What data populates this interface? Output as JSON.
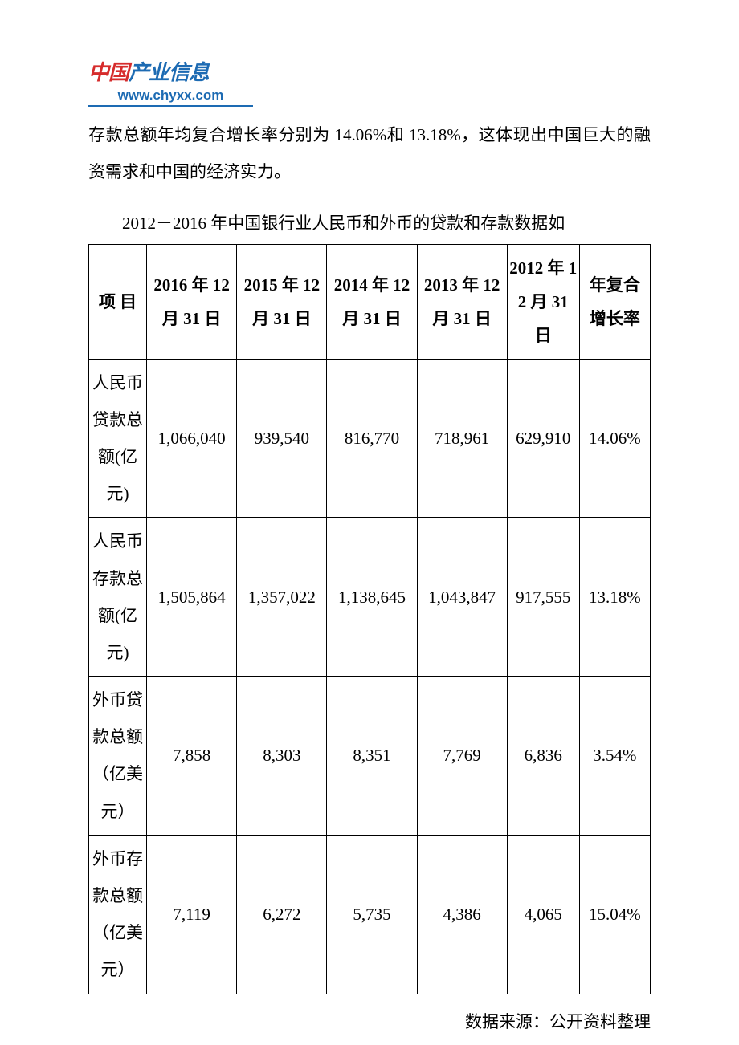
{
  "logo": {
    "text_red": "中国",
    "text_blue": "产业信息",
    "url": "www.chyxx.com"
  },
  "intro": "存款总额年均复合增长率分别为 14.06%和 13.18%，这体现出中国巨大的融资需求和中国的经济实力。",
  "table_title": "2012－2016 年中国银行业人民币和外币的贷款和存款数据如",
  "table": {
    "columns": [
      "项 目",
      "2016 年 12 月 31 日",
      "2015 年 12 月 31 日",
      "2014 年 12 月 31 日",
      "2013 年 12 月 31 日",
      "2012 年 12 月 31 日",
      "年复合增长率"
    ],
    "rows": [
      {
        "label": "人民币贷款总额(亿元)",
        "v2016": "1,066,040",
        "v2015": "939,540",
        "v2014": "816,770",
        "v2013": "718,961",
        "v2012": "629,910",
        "cagr": "14.06%"
      },
      {
        "label": "人民币存款总额(亿元)",
        "v2016": "1,505,864",
        "v2015": "1,357,022",
        "v2014": "1,138,645",
        "v2013": "1,043,847",
        "v2012": "917,555",
        "cagr": "13.18%"
      },
      {
        "label": "外币贷款总额（亿美元）",
        "v2016": "7,858",
        "v2015": "8,303",
        "v2014": "8,351",
        "v2013": "7,769",
        "v2012": "6,836",
        "cagr": "3.54%"
      },
      {
        "label": "外币存款总额（亿美元）",
        "v2016": "7,119",
        "v2015": "6,272",
        "v2014": "5,735",
        "v2013": "4,386",
        "v2012": "4,065",
        "cagr": "15.04%"
      }
    ]
  },
  "source": "数据来源：公开资料整理",
  "colors": {
    "text": "#000000",
    "logo_red": "#d62c2c",
    "logo_blue": "#1d6bb3",
    "border": "#000000",
    "background": "#ffffff"
  }
}
